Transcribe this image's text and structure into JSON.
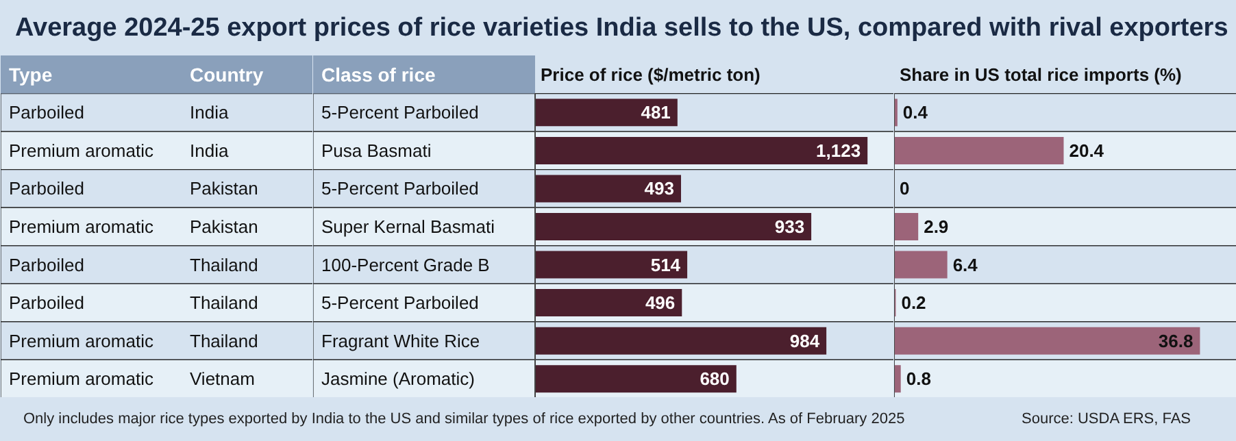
{
  "chart_data": [
    {
      "type": "other",
      "title": "Average 2024-25 export prices of rice varieties India sells to the US, compared with rival exporters",
      "annotations": [
        "Type",
        "Country",
        "Parboiled",
        "India",
        "Premium aromatic",
        "India",
        "Parboiled",
        "Pakistan",
        "Premium aromatic",
        "Pakistan",
        "Parboiled",
        "Thailand",
        "Parboiled",
        "Thailand",
        "Premium aromatic",
        "Thailand",
        "Premium aromatic",
        "Vietnam"
      ]
    },
    {
      "type": "bar",
      "orientation": "horizontal",
      "title": "Price of rice ($/metric ton)",
      "ylabel": "Class of rice",
      "tick_labels": "y",
      "color": "#4b1f2d",
      "categories": [
        "5-Percent Parboiled",
        "Pusa Basmati",
        "5-Percent Parboiled",
        "Super Kernal Basmati",
        "100-Percent Grade B",
        "5-Percent Parboiled",
        "Fragrant White Rice",
        "Jasmine (Aromatic)"
      ],
      "values": [
        481,
        1123,
        493,
        933,
        514,
        496,
        984,
        680
      ],
      "value_labels": [
        "481",
        "1,123",
        "493",
        "933",
        "514",
        "496",
        "984",
        "680"
      ]
    },
    {
      "type": "bar",
      "orientation": "horizontal",
      "title": "Share in US total rice imports (%)",
      "color": "#9c6479",
      "data_labels": true,
      "categories": [
        null,
        null,
        null,
        null,
        null,
        null,
        null,
        null
      ],
      "values": [
        0.4,
        20.4,
        0,
        2.9,
        6.4,
        0.2,
        36.8,
        0.8
      ],
      "annotations": [
        "Only includes major rice types exported by India to the US and similar types of rice exported by other countries. As of February 2025",
        "Source: USDA ERS, FAS"
      ]
    }
  ]
}
